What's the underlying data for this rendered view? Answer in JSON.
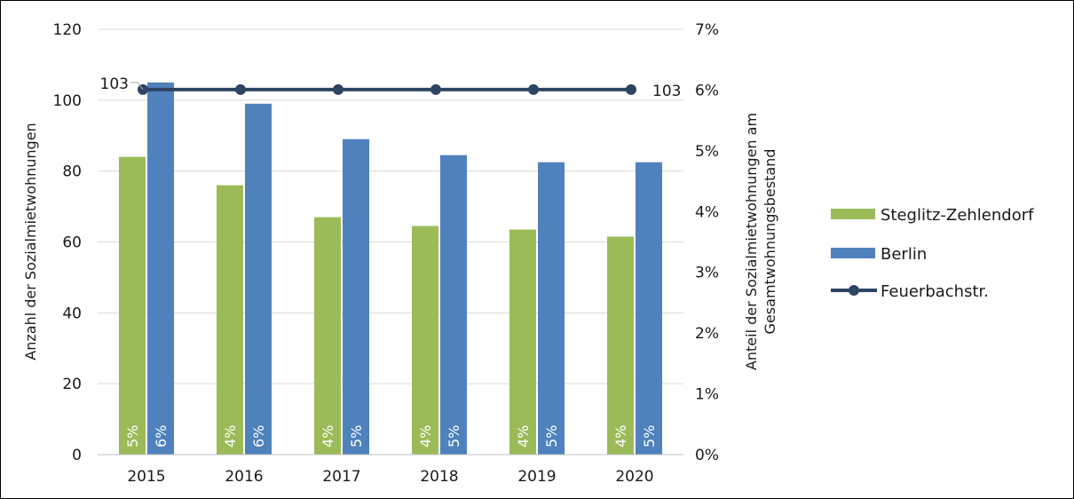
{
  "chart_data": {
    "type": "bar",
    "categories": [
      "2015",
      "2016",
      "2017",
      "2018",
      "2019",
      "2020"
    ],
    "series": [
      {
        "name": "Steglitz-Zehlendorf",
        "axis": "left",
        "type": "bar",
        "color": "#9BBB59",
        "values": [
          84,
          76,
          67,
          64.5,
          63.5,
          61.5
        ],
        "labels": [
          "5%",
          "4%",
          "4%",
          "4%",
          "4%",
          "4%"
        ]
      },
      {
        "name": "Berlin",
        "axis": "left",
        "type": "bar",
        "color": "#4F81BD",
        "values": [
          105,
          99,
          89,
          84.5,
          82.5,
          82.5
        ],
        "labels": [
          "6%",
          "6%",
          "5%",
          "5%",
          "5%",
          "5%"
        ]
      },
      {
        "name": "Feuerbachstr.",
        "axis": "left",
        "type": "line",
        "color": "#2E4463",
        "values": [
          103,
          103,
          103,
          103,
          103,
          103
        ],
        "labels": [
          "103",
          "",
          "",
          "",
          "",
          "103"
        ]
      }
    ],
    "y_left": {
      "label": "Anzahl der Sozialmietwohnungen",
      "min": 0,
      "max": 120,
      "ticks": [
        "0",
        "20",
        "40",
        "60",
        "80",
        "100",
        "120"
      ]
    },
    "y_right": {
      "label_lines": [
        "Anteil der Sozialmietwohnungen am",
        "Gesamtwohnungsbestand"
      ],
      "min": 0,
      "max": 7,
      "ticks": [
        "0%",
        "1%",
        "2%",
        "3%",
        "4%",
        "5%",
        "6%",
        "7%"
      ]
    },
    "grid": true,
    "legend": "right"
  }
}
